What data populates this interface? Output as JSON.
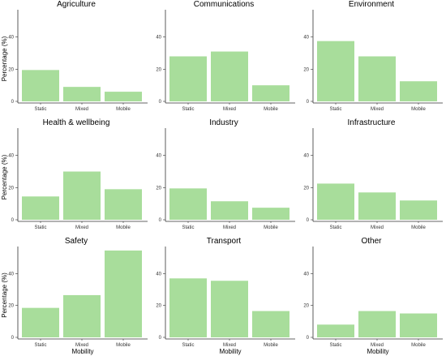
{
  "chart_data": {
    "type": "bar",
    "layout": "facet-grid-3x3",
    "bar_color": "#a8dd9b",
    "categories": [
      "Static",
      "Mixed",
      "Mobile"
    ],
    "ylim": [
      0,
      57
    ],
    "yticks": [
      0,
      20,
      40
    ],
    "ylabel": "Percentage (%)",
    "xlabel": "Mobility",
    "grid": false,
    "panels": [
      {
        "title": "Agriculture",
        "values": [
          19.5,
          9,
          6
        ]
      },
      {
        "title": "Communications",
        "values": [
          28,
          31,
          10
        ]
      },
      {
        "title": "Environment",
        "values": [
          37.5,
          28,
          12.5
        ]
      },
      {
        "title": "Health & wellbeing",
        "values": [
          14.5,
          30,
          19
        ]
      },
      {
        "title": "Industry",
        "values": [
          19.5,
          11.5,
          7.5
        ]
      },
      {
        "title": "Infrastructure",
        "values": [
          22.5,
          17,
          12
        ]
      },
      {
        "title": "Safety",
        "values": [
          18.5,
          26.5,
          54.5
        ]
      },
      {
        "title": "Transport",
        "values": [
          37,
          35.5,
          16.5
        ]
      },
      {
        "title": "Other",
        "values": [
          8,
          16.5,
          15
        ]
      }
    ]
  }
}
